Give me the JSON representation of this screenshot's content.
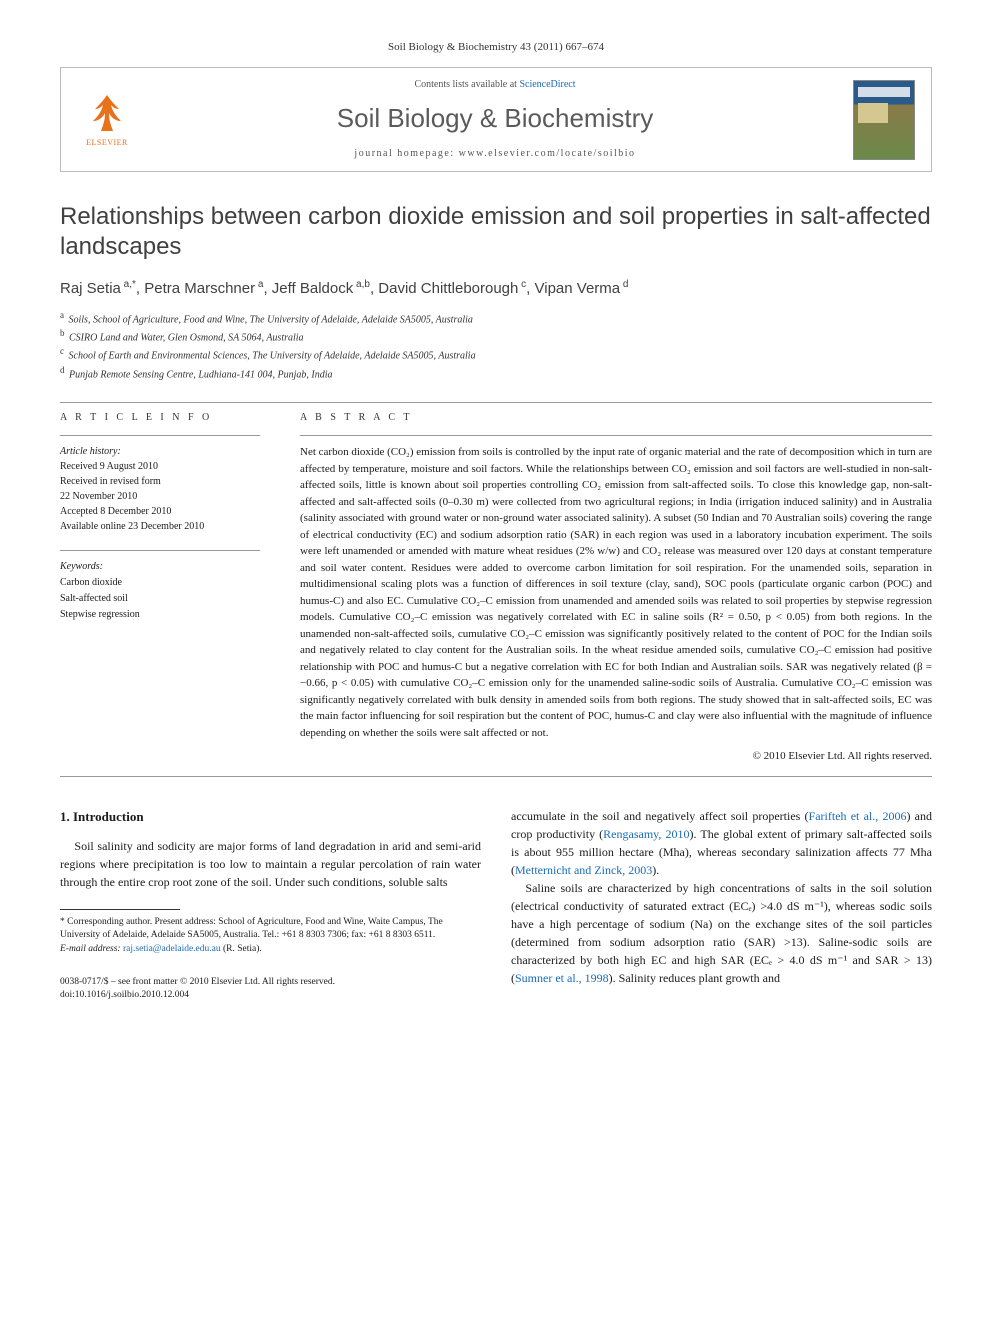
{
  "journal_ref": "Soil Biology & Biochemistry 43 (2011) 667–674",
  "header": {
    "contents_prefix": "Contents lists available at ",
    "contents_link": "ScienceDirect",
    "journal_name": "Soil Biology & Biochemistry",
    "homepage_prefix": "journal homepage: ",
    "homepage_url": "www.elsevier.com/locate/soilbio",
    "publisher": "ELSEVIER"
  },
  "title": "Relationships between carbon dioxide emission and soil properties in salt-affected landscapes",
  "authors_html": "Raj Setia|a,*|, Petra Marschner|a|, Jeff Baldock|a,b|, David Chittleborough|c|, Vipan Verma|d|",
  "authors": [
    {
      "name": "Raj Setia",
      "sup": "a,*"
    },
    {
      "name": "Petra Marschner",
      "sup": "a"
    },
    {
      "name": "Jeff Baldock",
      "sup": "a,b"
    },
    {
      "name": "David Chittleborough",
      "sup": "c"
    },
    {
      "name": "Vipan Verma",
      "sup": "d"
    }
  ],
  "affiliations": [
    {
      "sup": "a",
      "text": "Soils, School of Agriculture, Food and Wine, The University of Adelaide, Adelaide SA5005, Australia"
    },
    {
      "sup": "b",
      "text": "CSIRO Land and Water, Glen Osmond, SA 5064, Australia"
    },
    {
      "sup": "c",
      "text": "School of Earth and Environmental Sciences, The University of Adelaide, Adelaide SA5005, Australia"
    },
    {
      "sup": "d",
      "text": "Punjab Remote Sensing Centre, Ludhiana-141 004, Punjab, India"
    }
  ],
  "labels": {
    "article_info": "A R T I C L E   I N F O",
    "abstract": "A B S T R A C T",
    "history_heading": "Article history:",
    "keywords_heading": "Keywords:"
  },
  "history": [
    "Received 9 August 2010",
    "Received in revised form",
    "22 November 2010",
    "Accepted 8 December 2010",
    "Available online 23 December 2010"
  ],
  "keywords": [
    "Carbon dioxide",
    "Salt-affected soil",
    "Stepwise regression"
  ],
  "abstract": "Net carbon dioxide (CO₂) emission from soils is controlled by the input rate of organic material and the rate of decomposition which in turn are affected by temperature, moisture and soil factors. While the relationships between CO₂ emission and soil factors are well-studied in non-salt-affected soils, little is known about soil properties controlling CO₂ emission from salt-affected soils. To close this knowledge gap, non-salt-affected and salt-affected soils (0–0.30 m) were collected from two agricultural regions; in India (irrigation induced salinity) and in Australia (salinity associated with ground water or non-ground water associated salinity). A subset (50 Indian and 70 Australian soils) covering the range of electrical conductivity (EC) and sodium adsorption ratio (SAR) in each region was used in a laboratory incubation experiment. The soils were left unamended or amended with mature wheat residues (2% w/w) and CO₂ release was measured over 120 days at constant temperature and soil water content. Residues were added to overcome carbon limitation for soil respiration. For the unamended soils, separation in multidimensional scaling plots was a function of differences in soil texture (clay, sand), SOC pools (particulate organic carbon (POC) and humus-C) and also EC. Cumulative CO₂–C emission from unamended and amended soils was related to soil properties by stepwise regression models. Cumulative CO₂–C emission was negatively correlated with EC in saline soils (R² = 0.50, p < 0.05) from both regions. In the unamended non-salt-affected soils, cumulative CO₂–C emission was significantly positively related to the content of POC for the Indian soils and negatively related to clay content for the Australian soils. In the wheat residue amended soils, cumulative CO₂–C emission had positive relationship with POC and humus-C but a negative correlation with EC for both Indian and Australian soils. SAR was negatively related (β = −0.66, p < 0.05) with cumulative CO₂–C emission only for the unamended saline-sodic soils of Australia. Cumulative CO₂–C emission was significantly negatively correlated with bulk density in amended soils from both regions. The study showed that in salt-affected soils, EC was the main factor influencing for soil respiration but the content of POC, humus-C and clay were also influential with the magnitude of influence depending on whether the soils were salt affected or not.",
  "copyright": "© 2010 Elsevier Ltd. All rights reserved.",
  "intro_heading": "1. Introduction",
  "intro_col1": "Soil salinity and sodicity are major forms of land degradation in arid and semi-arid regions where precipitation is too low to maintain a regular percolation of rain water through the entire crop root zone of the soil. Under such conditions, soluble salts",
  "intro_col2_p1_a": "accumulate in the soil and negatively affect soil properties (",
  "intro_col2_p1_link1": "Farifteh et al., 2006",
  "intro_col2_p1_b": ") and crop productivity (",
  "intro_col2_p1_link2": "Rengasamy, 2010",
  "intro_col2_p1_c": "). The global extent of primary salt-affected soils is about 955 million hectare (Mha), whereas secondary salinization affects 77 Mha (",
  "intro_col2_p1_link3": "Metternicht and Zinck, 2003",
  "intro_col2_p1_d": ").",
  "intro_col2_p2_a": "Saline soils are characterized by high concentrations of salts in the soil solution (electrical conductivity of saturated extract (ECₑ) >4.0 dS m⁻¹), whereas sodic soils have a high percentage of sodium (Na) on the exchange sites of the soil particles (determined from sodium adsorption ratio (SAR) >13). Saline-sodic soils are characterized by both high EC and high SAR (ECₑ > 4.0 dS m⁻¹ and SAR > 13) (",
  "intro_col2_p2_link1": "Sumner et al., 1998",
  "intro_col2_p2_b": "). Salinity reduces plant growth and",
  "footnote": {
    "corr": "* Corresponding author. Present address: School of Agriculture, Food and Wine, Waite Campus, The University of Adelaide, Adelaide SA5005, Australia. Tel.: +61 8 8303 7306; fax: +61 8 8303 6511.",
    "email_label": "E-mail address: ",
    "email": "raj.setia@adelaide.edu.au",
    "email_suffix": " (R. Setia)."
  },
  "footer": {
    "issn": "0038-0717/$ – see front matter © 2010 Elsevier Ltd. All rights reserved.",
    "doi": "doi:10.1016/j.soilbio.2010.12.004"
  },
  "colors": {
    "link": "#1a6bb8",
    "elsevier": "#e8711c",
    "text": "#1a1a1a",
    "gray_heading": "#404040"
  }
}
